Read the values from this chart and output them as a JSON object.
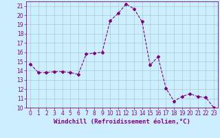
{
  "x": [
    0,
    1,
    2,
    3,
    4,
    5,
    6,
    7,
    8,
    9,
    10,
    11,
    12,
    13,
    14,
    15,
    16,
    17,
    18,
    19,
    20,
    21,
    22,
    23
  ],
  "y": [
    14.7,
    13.8,
    13.8,
    13.9,
    13.9,
    13.8,
    13.6,
    15.8,
    15.9,
    16.0,
    19.4,
    20.2,
    21.2,
    20.7,
    19.3,
    14.6,
    15.5,
    12.1,
    10.7,
    11.2,
    11.5,
    11.2,
    11.1,
    10.0
  ],
  "line_color": "#800080",
  "marker": "D",
  "marker_size": 2,
  "bg_color": "#cceeff",
  "grid_color": "#aacccc",
  "xlabel": "Windchill (Refroidissement éolien,°C)",
  "xlim": [
    -0.5,
    23.5
  ],
  "ylim": [
    10,
    21.5
  ],
  "yticks": [
    10,
    11,
    12,
    13,
    14,
    15,
    16,
    17,
    18,
    19,
    20,
    21
  ],
  "xticks": [
    0,
    1,
    2,
    3,
    4,
    5,
    6,
    7,
    8,
    9,
    10,
    11,
    12,
    13,
    14,
    15,
    16,
    17,
    18,
    19,
    20,
    21,
    22,
    23
  ],
  "tick_color": "#800080",
  "label_color": "#800080",
  "spine_color": "#800080",
  "tick_labelsize": 5.5,
  "xlabel_fontsize": 6.5,
  "linewidth": 0.8
}
